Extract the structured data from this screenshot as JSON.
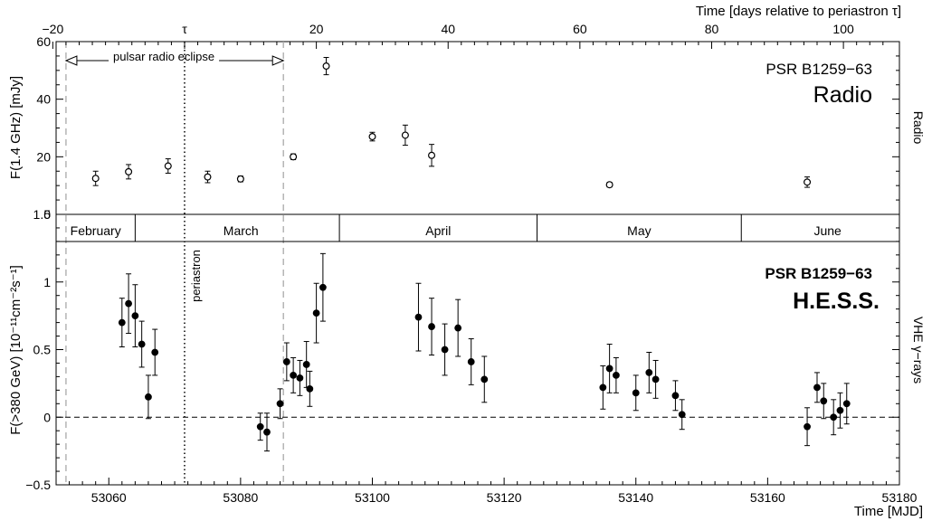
{
  "chart_data": [
    {
      "type": "scatter",
      "panel": "radio",
      "top_axis_label": "Time [days relative to periastron τ]",
      "top_tick_labels": [
        "−20",
        "τ",
        "20",
        "40",
        "60",
        "80",
        "100"
      ],
      "top_tick_values": [
        -20,
        0,
        20,
        40,
        60,
        80,
        100
      ],
      "ylabel": "F(1.4 GHz) [mJy]",
      "right_label": "Radio",
      "source": "PSR B1259−63",
      "instrument": "Radio",
      "eclipse_label": "pulsar radio eclipse",
      "ylim": [
        0,
        60
      ],
      "y_ticks": [
        0,
        20,
        40,
        60
      ],
      "y_tick_labels": [
        "0",
        "20",
        "40",
        "60"
      ],
      "grid": false,
      "series": [
        {
          "marker": "open-circle",
          "x": [
            53058,
            53063,
            53069,
            53075,
            53080,
            53088,
            53093,
            53100,
            53105,
            53109,
            53136,
            53166
          ],
          "y": [
            12.5,
            14.8,
            16.8,
            13.0,
            12.3,
            20.0,
            51.5,
            27.0,
            27.5,
            20.5,
            10.3,
            11.2
          ],
          "yerr": [
            2.5,
            2.5,
            2.5,
            2.0,
            1.0,
            1.0,
            3.0,
            1.5,
            3.5,
            3.8,
            0.8,
            1.8
          ]
        }
      ]
    },
    {
      "type": "scatter",
      "panel": "hess",
      "xlabel": "Time [MJD]",
      "xlim": [
        53052,
        53180
      ],
      "x_ticks": [
        53060,
        53080,
        53100,
        53120,
        53140,
        53160,
        53180
      ],
      "x_tick_labels": [
        "53060",
        "53080",
        "53100",
        "53120",
        "53140",
        "53160",
        "53180"
      ],
      "ylabel": "F(>380 GeV) [10⁻¹¹cm⁻²s⁻¹]",
      "right_label": "VHE γ−rays",
      "source": "PSR B1259−63",
      "instrument": "H.E.S.S.",
      "months": [
        "February",
        "March",
        "April",
        "May",
        "June"
      ],
      "month_boundaries": [
        53064.0,
        53095.0,
        53125.0,
        53156.0
      ],
      "periastron_label": "periastron",
      "periastron_mjd": 53071.5,
      "eclipse_start_mjd": 53053.5,
      "eclipse_end_mjd": 53086.5,
      "ylim": [
        -0.5,
        1.5
      ],
      "y_ticks": [
        -0.5,
        0,
        0.5,
        1,
        1.5
      ],
      "y_tick_labels": [
        "−0.5",
        "0",
        "0.5",
        "1",
        "1.5"
      ],
      "baseline": 0,
      "grid": false,
      "series": [
        {
          "marker": "filled-circle",
          "x": [
            53062,
            53063,
            53064,
            53065,
            53066,
            53067,
            53083,
            53084,
            53086,
            53087,
            53088,
            53089,
            53090,
            53090.5,
            53091.5,
            53092.5,
            53107,
            53109,
            53111,
            53113,
            53115,
            53117,
            53135,
            53136,
            53137,
            53140,
            53142,
            53143,
            53146,
            53147,
            53166,
            53167.5,
            53168.5,
            53170,
            53171,
            53172
          ],
          "y": [
            0.7,
            0.84,
            0.75,
            0.54,
            0.15,
            0.48,
            -0.07,
            -0.11,
            0.1,
            0.41,
            0.31,
            0.29,
            0.39,
            0.21,
            0.77,
            0.96,
            0.74,
            0.67,
            0.5,
            0.66,
            0.41,
            0.28,
            0.22,
            0.36,
            0.31,
            0.18,
            0.33,
            0.28,
            0.16,
            0.02,
            -0.07,
            0.22,
            0.12,
            0.0,
            0.05,
            0.1
          ],
          "yerr": [
            0.18,
            0.22,
            0.23,
            0.17,
            0.16,
            0.17,
            0.1,
            0.14,
            0.11,
            0.14,
            0.13,
            0.13,
            0.17,
            0.13,
            0.22,
            0.25,
            0.25,
            0.21,
            0.19,
            0.21,
            0.17,
            0.17,
            0.16,
            0.18,
            0.13,
            0.13,
            0.15,
            0.14,
            0.11,
            0.11,
            0.14,
            0.11,
            0.13,
            0.13,
            0.13,
            0.15
          ]
        }
      ]
    }
  ]
}
